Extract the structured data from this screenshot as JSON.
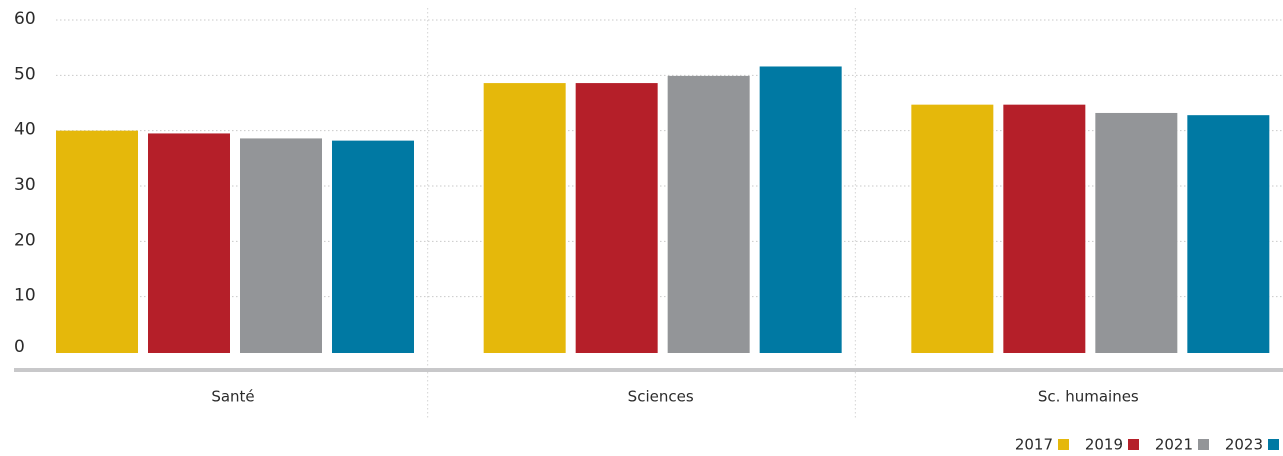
{
  "chart_data": {
    "type": "bar",
    "categories": [
      "Santé",
      "Sciences",
      "Sc. humaines"
    ],
    "series": [
      {
        "name": "2017",
        "color": "#e5b80b",
        "values": [
          40,
          48.6,
          44.7
        ]
      },
      {
        "name": "2019",
        "color": "#b51f29",
        "values": [
          39.5,
          48.6,
          44.7
        ]
      },
      {
        "name": "2021",
        "color": "#939598",
        "values": [
          38.6,
          49.9,
          43.2
        ]
      },
      {
        "name": "2023",
        "color": "#0079a3",
        "values": [
          38.2,
          51.6,
          42.8
        ]
      }
    ],
    "yticks": [
      "0",
      "10",
      "20",
      "30",
      "40",
      "50",
      "60"
    ],
    "ylim": [
      0,
      60
    ],
    "grid": true,
    "legend_position": "bottom-right",
    "title": "",
    "xlabel": "",
    "ylabel": ""
  }
}
